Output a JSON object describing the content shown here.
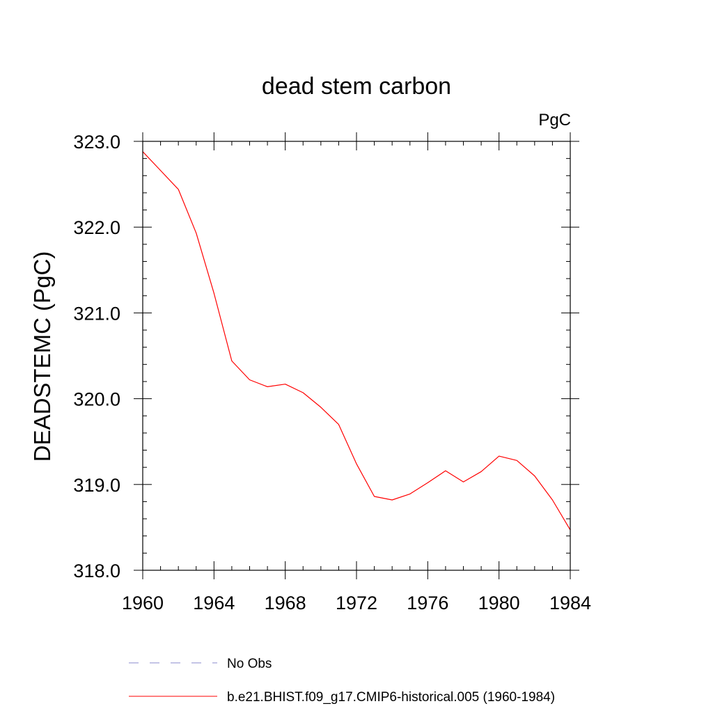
{
  "chart_data": {
    "type": "line",
    "title": "dead stem carbon",
    "units_label": "PgC",
    "xlabel": "",
    "ylabel": "DEADSTEMC  (PgC)",
    "xlim": [
      1960,
      1984
    ],
    "ylim": [
      318.0,
      323.0
    ],
    "x_ticks": [
      1960,
      1964,
      1968,
      1972,
      1976,
      1980,
      1984
    ],
    "x_tick_labels": [
      "1960",
      "1964",
      "1968",
      "1972",
      "1976",
      "1980",
      "1984"
    ],
    "y_ticks": [
      318.0,
      319.0,
      320.0,
      321.0,
      322.0,
      323.0
    ],
    "y_tick_labels": [
      "318.0",
      "319.0",
      "320.0",
      "321.0",
      "322.0",
      "323.0"
    ],
    "series": [
      {
        "name": "b.e21.BHIST.f09_g17.CMIP6-historical.005 (1960-1984)",
        "color": "#ff0000",
        "style": "solid",
        "x": [
          1960,
          1961,
          1962,
          1963,
          1964,
          1965,
          1966,
          1967,
          1968,
          1969,
          1970,
          1971,
          1972,
          1973,
          1974,
          1975,
          1976,
          1977,
          1978,
          1979,
          1980,
          1981,
          1982,
          1983,
          1984
        ],
        "values": [
          322.88,
          322.66,
          322.44,
          321.93,
          321.23,
          320.44,
          320.22,
          320.14,
          320.17,
          320.07,
          319.9,
          319.7,
          319.24,
          318.86,
          318.82,
          318.89,
          319.02,
          319.16,
          319.03,
          319.15,
          319.33,
          319.28,
          319.1,
          318.82,
          318.47
        ]
      }
    ],
    "legend": [
      {
        "label": "No Obs",
        "color": "#8888cc",
        "style": "dashed"
      },
      {
        "label": "b.e21.BHIST.f09_g17.CMIP6-historical.005 (1960-1984)",
        "color": "#ff0000",
        "style": "solid"
      }
    ],
    "legend_position": "bottom"
  }
}
